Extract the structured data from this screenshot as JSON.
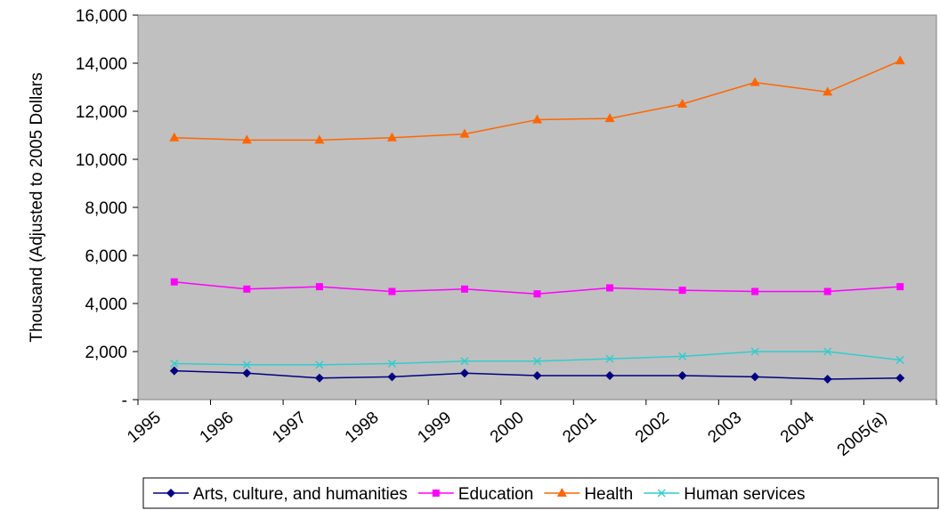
{
  "chart_data": {
    "type": "line",
    "title": "",
    "ylabel": "Thousand (Adjusted to 2005 Dollars",
    "xlabel": "",
    "categories": [
      "1995",
      "1996",
      "1997",
      "1998",
      "1999",
      "2000",
      "2001",
      "2002",
      "2003",
      "2004",
      "2005(a)"
    ],
    "ylim": [
      0,
      16000
    ],
    "yticks": [
      0,
      2000,
      4000,
      6000,
      8000,
      10000,
      12000,
      14000,
      16000
    ],
    "ytick_labels": [
      "-",
      "2,000",
      "4,000",
      "6,000",
      "8,000",
      "10,000",
      "12,000",
      "14,000",
      "16,000"
    ],
    "plot_background": "#c0c0c0",
    "grid": false,
    "legend_position": "bottom",
    "series": [
      {
        "name": "Arts, culture, and humanities",
        "color": "#000080",
        "marker": "diamond",
        "values": [
          1200,
          1100,
          900,
          950,
          1100,
          1000,
          1000,
          1000,
          950,
          850,
          900
        ]
      },
      {
        "name": "Education",
        "color": "#ff00ff",
        "marker": "square",
        "values": [
          4900,
          4600,
          4700,
          4500,
          4600,
          4400,
          4650,
          4550,
          4500,
          4500,
          4700
        ]
      },
      {
        "name": "Health",
        "color": "#ff6600",
        "marker": "triangle",
        "values": [
          10900,
          10800,
          10800,
          10900,
          11050,
          11650,
          11700,
          12300,
          13200,
          12800,
          14100
        ]
      },
      {
        "name": "Human services",
        "color": "#33cccc",
        "marker": "x",
        "values": [
          1500,
          1450,
          1450,
          1500,
          1600,
          1600,
          1700,
          1800,
          2000,
          2000,
          1650
        ]
      }
    ]
  }
}
